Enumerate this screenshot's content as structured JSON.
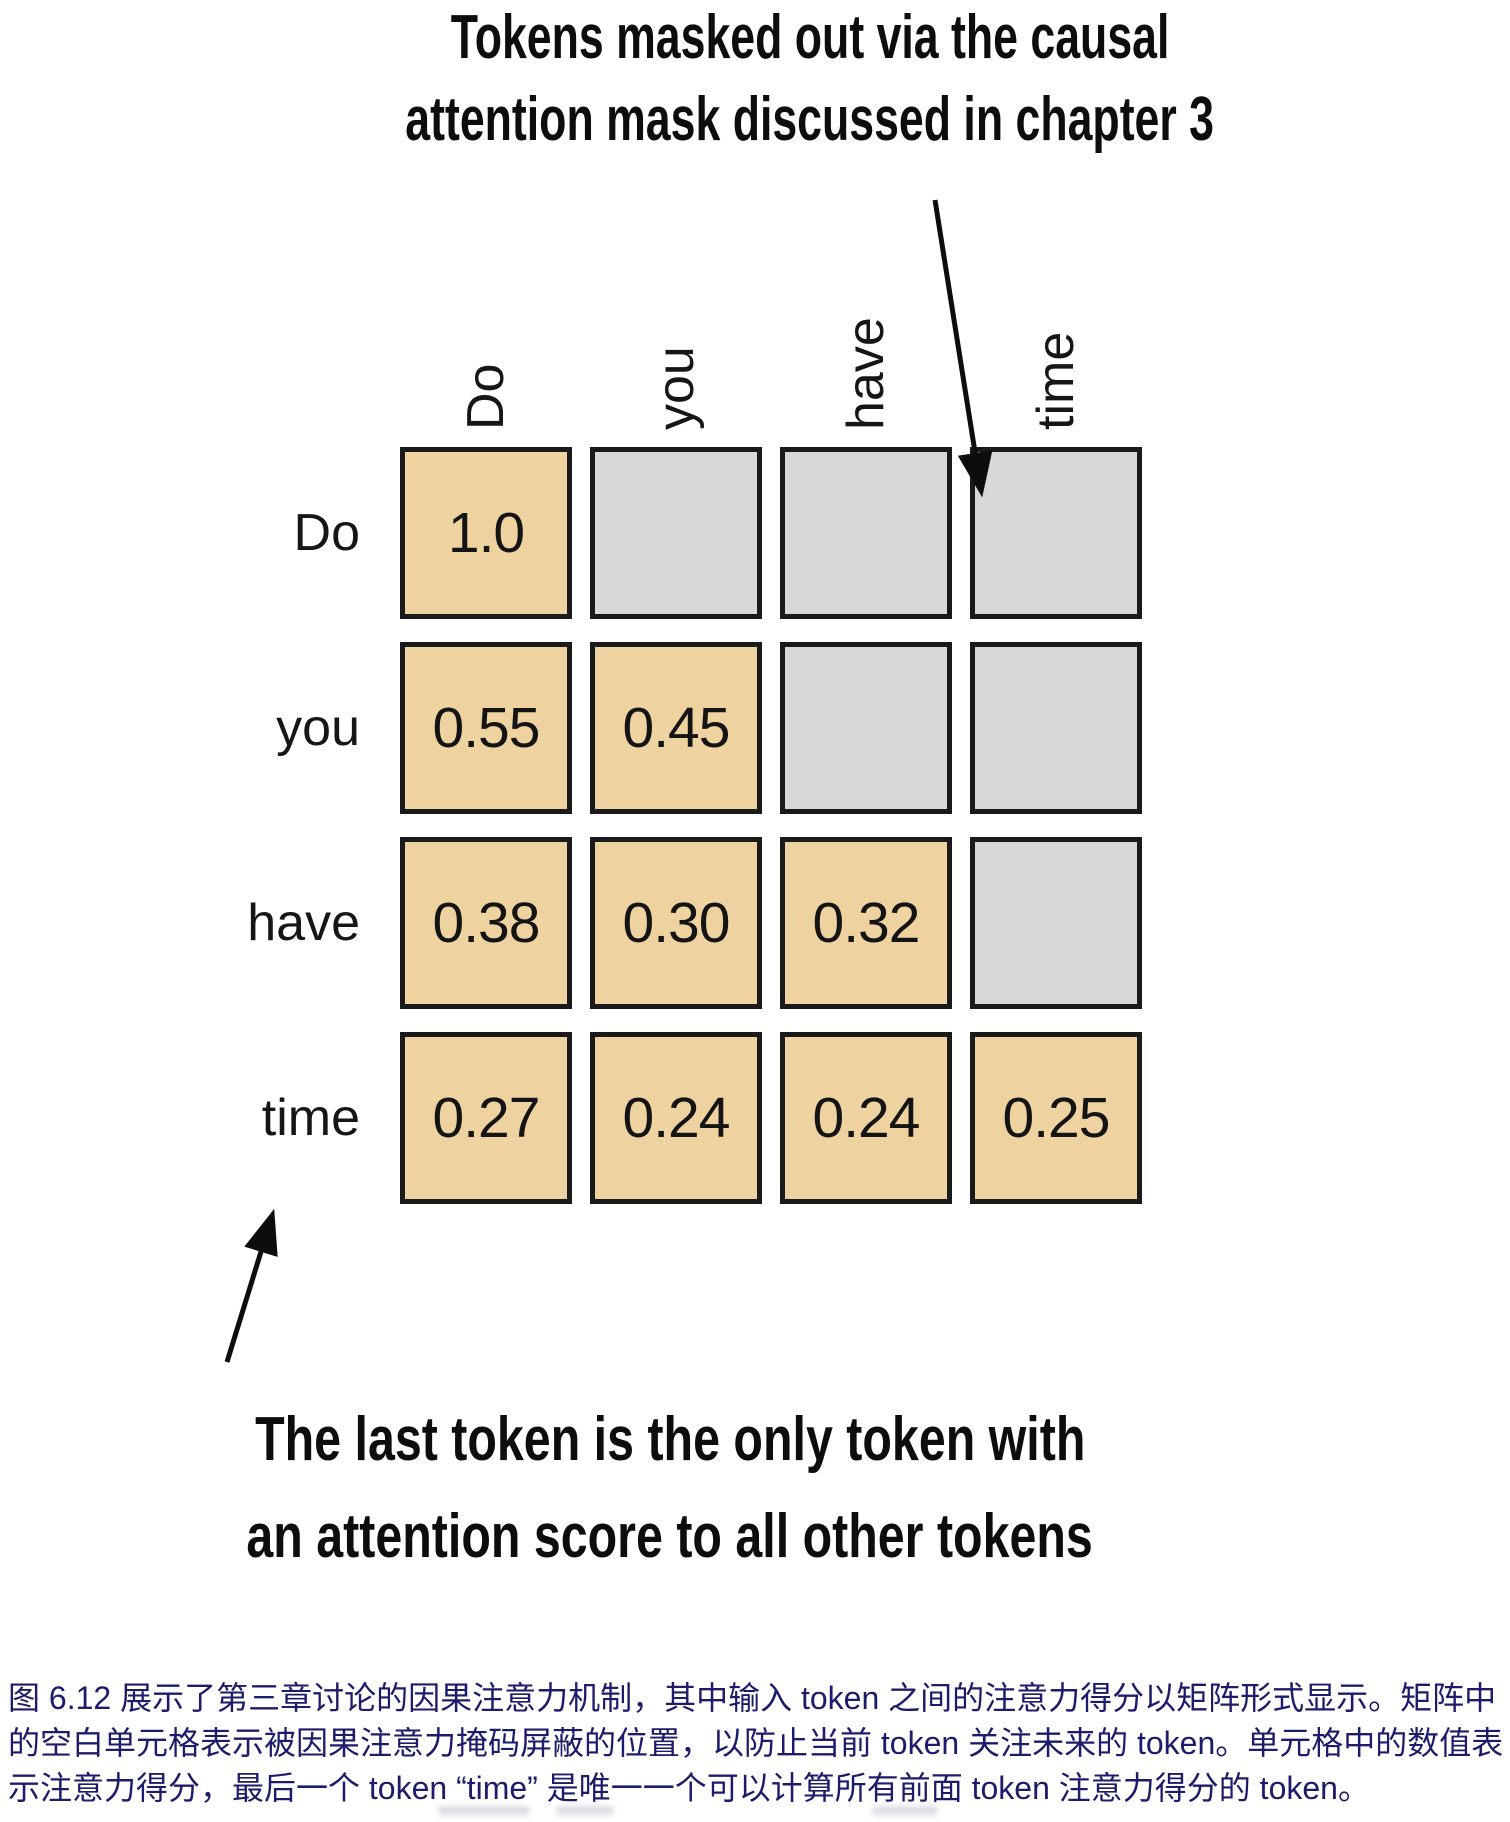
{
  "figure": {
    "top_annotation": {
      "line1": "Tokens masked out via the causal",
      "line2": "attention mask discussed in chapter 3"
    },
    "bottom_annotation": {
      "line1": "The last token is the only token with",
      "line2": "an attention score to all other tokens"
    },
    "matrix": {
      "column_headers": [
        "Do",
        "you",
        "have",
        "time"
      ],
      "row_headers": [
        "Do",
        "you",
        "have",
        "time"
      ],
      "values": [
        [
          "1.0",
          "",
          "",
          ""
        ],
        [
          "0.55",
          "0.45",
          "",
          ""
        ],
        [
          "0.38",
          "0.30",
          "0.32",
          ""
        ],
        [
          "0.27",
          "0.24",
          "0.24",
          "0.25"
        ]
      ],
      "masked": [
        [
          false,
          true,
          true,
          true
        ],
        [
          false,
          false,
          true,
          true
        ],
        [
          false,
          false,
          false,
          true
        ],
        [
          false,
          false,
          false,
          false
        ]
      ],
      "colors": {
        "score_cell": "#eed3a0",
        "masked_cell": "#d8d8da",
        "cell_border": "#1a1a1a"
      }
    },
    "caption": {
      "label": "图 6.12",
      "text": "图 6.12 展示了第三章讨论的因果注意力机制，其中输入 token 之间的注意力得分以矩阵形式显示。矩阵中的空白单元格表示被因果注意力掩码屏蔽的位置，以防止当前 token 关注未来的 token。单元格中的数值表示注意力得分，最后一个 token “time” 是唯一一个可以计算所有前面 token 注意力得分的 token。",
      "color": "#1c1c6b"
    }
  }
}
